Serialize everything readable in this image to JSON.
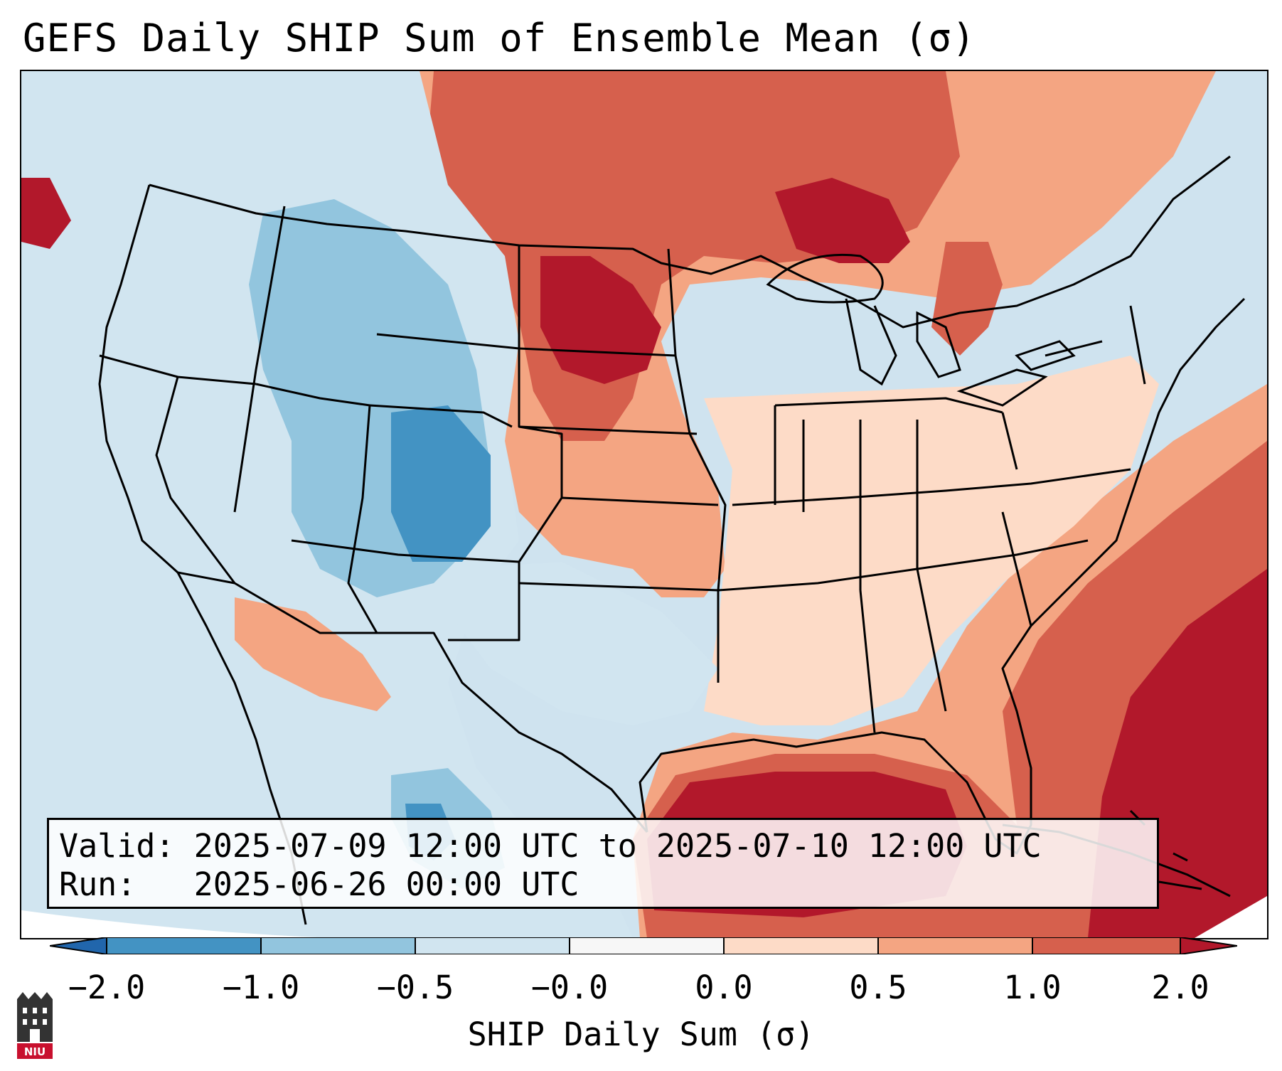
{
  "title": "GEFS Daily SHIP Sum of Ensemble Mean (σ)",
  "info": {
    "valid_line": "Valid: 2025-07-09 12:00 UTC to 2025-07-10 12:00 UTC",
    "run_line": "Run:   2025-06-26 00:00 UTC"
  },
  "colorbar": {
    "label": "SHIP Daily Sum (σ)",
    "ticks": [
      "−2.0",
      "−1.0",
      "−0.5",
      "−0.0",
      "0.0",
      "0.5",
      "1.0",
      "2.0"
    ],
    "colors": [
      "#4393c3",
      "#92c5de",
      "#d1e5f0",
      "#f7f7f7",
      "#fddbc7",
      "#f4a582",
      "#d6604d",
      "#b2182b"
    ],
    "under_color": "#2166ac",
    "over_color": "#67001f"
  },
  "logo": {
    "text": "NIU"
  }
}
